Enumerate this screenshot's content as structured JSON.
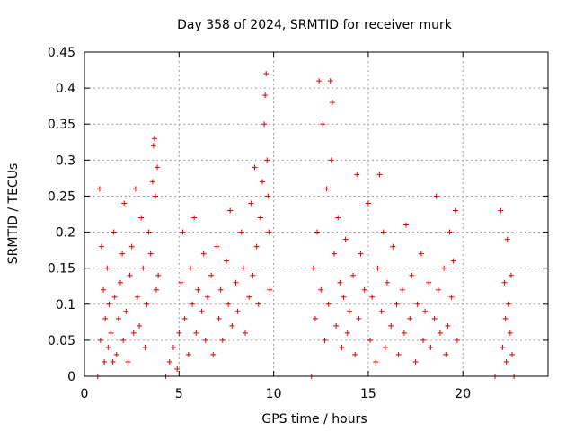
{
  "chart_data": {
    "type": "scatter",
    "title": "Day 358 of 2024, SRMTID for receiver murk",
    "xlabel": "GPS time / hours",
    "ylabel": "SRMTID / TECUs",
    "xlim": [
      0,
      24.5
    ],
    "ylim": [
      0,
      0.45
    ],
    "xticks": [
      0,
      5,
      10,
      15,
      20
    ],
    "yticks": [
      0,
      0.05,
      0.1,
      0.15,
      0.2,
      0.25,
      0.3,
      0.35,
      0.4,
      0.45
    ],
    "xtick_labels": [
      "0",
      "5",
      "10",
      "15",
      "20"
    ],
    "ytick_labels": [
      "0",
      "0.05",
      "0.1",
      "0.15",
      "0.2",
      "0.25",
      "0.3",
      "0.35",
      "0.4",
      "0.45"
    ],
    "grid": true,
    "marker": "plus",
    "color": "#e00000",
    "series": [
      {
        "name": "SRMTID",
        "points": [
          [
            0.7,
            0.0
          ],
          [
            0.8,
            0.26
          ],
          [
            0.85,
            0.05
          ],
          [
            0.9,
            0.18
          ],
          [
            1.0,
            0.12
          ],
          [
            1.05,
            0.02
          ],
          [
            1.1,
            0.08
          ],
          [
            1.2,
            0.15
          ],
          [
            1.25,
            0.04
          ],
          [
            1.3,
            0.1
          ],
          [
            1.4,
            0.06
          ],
          [
            1.5,
            0.02
          ],
          [
            1.55,
            0.2
          ],
          [
            1.6,
            0.11
          ],
          [
            1.7,
            0.03
          ],
          [
            1.8,
            0.08
          ],
          [
            1.9,
            0.13
          ],
          [
            2.0,
            0.17
          ],
          [
            2.05,
            0.05
          ],
          [
            2.1,
            0.24
          ],
          [
            2.2,
            0.09
          ],
          [
            2.3,
            0.02
          ],
          [
            2.4,
            0.14
          ],
          [
            2.5,
            0.18
          ],
          [
            2.6,
            0.06
          ],
          [
            2.7,
            0.26
          ],
          [
            2.8,
            0.11
          ],
          [
            2.9,
            0.07
          ],
          [
            3.0,
            0.22
          ],
          [
            3.1,
            0.15
          ],
          [
            3.2,
            0.04
          ],
          [
            3.3,
            0.1
          ],
          [
            3.4,
            0.2
          ],
          [
            3.5,
            0.17
          ],
          [
            3.6,
            0.27
          ],
          [
            3.65,
            0.32
          ],
          [
            3.7,
            0.33
          ],
          [
            3.75,
            0.25
          ],
          [
            3.8,
            0.12
          ],
          [
            3.85,
            0.29
          ],
          [
            3.9,
            0.14
          ],
          [
            4.3,
            0.0
          ],
          [
            4.5,
            0.02
          ],
          [
            4.7,
            0.04
          ],
          [
            4.9,
            0.01
          ],
          [
            5.0,
            0.06
          ],
          [
            5.1,
            0.13
          ],
          [
            5.2,
            0.2
          ],
          [
            5.3,
            0.08
          ],
          [
            5.5,
            0.03
          ],
          [
            5.6,
            0.15
          ],
          [
            5.7,
            0.1
          ],
          [
            5.8,
            0.22
          ],
          [
            5.9,
            0.06
          ],
          [
            6.0,
            0.12
          ],
          [
            6.2,
            0.09
          ],
          [
            6.3,
            0.17
          ],
          [
            6.4,
            0.05
          ],
          [
            6.5,
            0.11
          ],
          [
            6.7,
            0.14
          ],
          [
            6.8,
            0.03
          ],
          [
            7.0,
            0.18
          ],
          [
            7.1,
            0.08
          ],
          [
            7.2,
            0.12
          ],
          [
            7.3,
            0.05
          ],
          [
            7.5,
            0.16
          ],
          [
            7.6,
            0.1
          ],
          [
            7.7,
            0.23
          ],
          [
            7.8,
            0.07
          ],
          [
            8.0,
            0.13
          ],
          [
            8.1,
            0.09
          ],
          [
            8.3,
            0.2
          ],
          [
            8.4,
            0.15
          ],
          [
            8.5,
            0.06
          ],
          [
            8.7,
            0.11
          ],
          [
            8.8,
            0.24
          ],
          [
            8.9,
            0.14
          ],
          [
            9.0,
            0.29
          ],
          [
            9.1,
            0.18
          ],
          [
            9.2,
            0.1
          ],
          [
            9.3,
            0.22
          ],
          [
            9.4,
            0.27
          ],
          [
            9.5,
            0.35
          ],
          [
            9.55,
            0.39
          ],
          [
            9.6,
            0.42
          ],
          [
            9.65,
            0.3
          ],
          [
            9.7,
            0.25
          ],
          [
            9.75,
            0.2
          ],
          [
            9.8,
            0.12
          ],
          [
            12.0,
            0.0
          ],
          [
            12.1,
            0.15
          ],
          [
            12.2,
            0.08
          ],
          [
            12.3,
            0.2
          ],
          [
            12.4,
            0.41
          ],
          [
            12.5,
            0.12
          ],
          [
            12.6,
            0.35
          ],
          [
            12.7,
            0.05
          ],
          [
            12.8,
            0.26
          ],
          [
            12.9,
            0.1
          ],
          [
            13.0,
            0.41
          ],
          [
            13.05,
            0.3
          ],
          [
            13.1,
            0.38
          ],
          [
            13.2,
            0.17
          ],
          [
            13.3,
            0.07
          ],
          [
            13.4,
            0.22
          ],
          [
            13.5,
            0.13
          ],
          [
            13.6,
            0.04
          ],
          [
            13.7,
            0.11
          ],
          [
            13.8,
            0.19
          ],
          [
            13.9,
            0.06
          ],
          [
            14.0,
            0.09
          ],
          [
            14.2,
            0.14
          ],
          [
            14.3,
            0.03
          ],
          [
            14.4,
            0.28
          ],
          [
            14.5,
            0.08
          ],
          [
            14.6,
            0.17
          ],
          [
            14.8,
            0.12
          ],
          [
            15.0,
            0.24
          ],
          [
            15.1,
            0.05
          ],
          [
            15.2,
            0.11
          ],
          [
            15.4,
            0.02
          ],
          [
            15.5,
            0.15
          ],
          [
            15.6,
            0.28
          ],
          [
            15.7,
            0.09
          ],
          [
            15.8,
            0.2
          ],
          [
            15.9,
            0.04
          ],
          [
            16.0,
            0.13
          ],
          [
            16.2,
            0.07
          ],
          [
            16.3,
            0.18
          ],
          [
            16.5,
            0.1
          ],
          [
            16.6,
            0.03
          ],
          [
            16.8,
            0.12
          ],
          [
            16.9,
            0.06
          ],
          [
            17.0,
            0.21
          ],
          [
            17.2,
            0.08
          ],
          [
            17.3,
            0.14
          ],
          [
            17.5,
            0.02
          ],
          [
            17.6,
            0.1
          ],
          [
            17.8,
            0.17
          ],
          [
            17.9,
            0.05
          ],
          [
            18.0,
            0.09
          ],
          [
            18.2,
            0.13
          ],
          [
            18.3,
            0.04
          ],
          [
            18.5,
            0.08
          ],
          [
            18.6,
            0.25
          ],
          [
            18.7,
            0.12
          ],
          [
            18.8,
            0.06
          ],
          [
            19.0,
            0.15
          ],
          [
            19.1,
            0.03
          ],
          [
            19.2,
            0.07
          ],
          [
            19.3,
            0.2
          ],
          [
            19.4,
            0.11
          ],
          [
            19.5,
            0.16
          ],
          [
            19.6,
            0.23
          ],
          [
            19.7,
            0.05
          ],
          [
            21.7,
            0.0
          ],
          [
            22.0,
            0.23
          ],
          [
            22.1,
            0.04
          ],
          [
            22.2,
            0.13
          ],
          [
            22.25,
            0.08
          ],
          [
            22.3,
            0.02
          ],
          [
            22.35,
            0.19
          ],
          [
            22.4,
            0.1
          ],
          [
            22.5,
            0.06
          ],
          [
            22.55,
            0.14
          ],
          [
            22.6,
            0.03
          ],
          [
            22.7,
            0.0
          ]
        ]
      }
    ]
  }
}
